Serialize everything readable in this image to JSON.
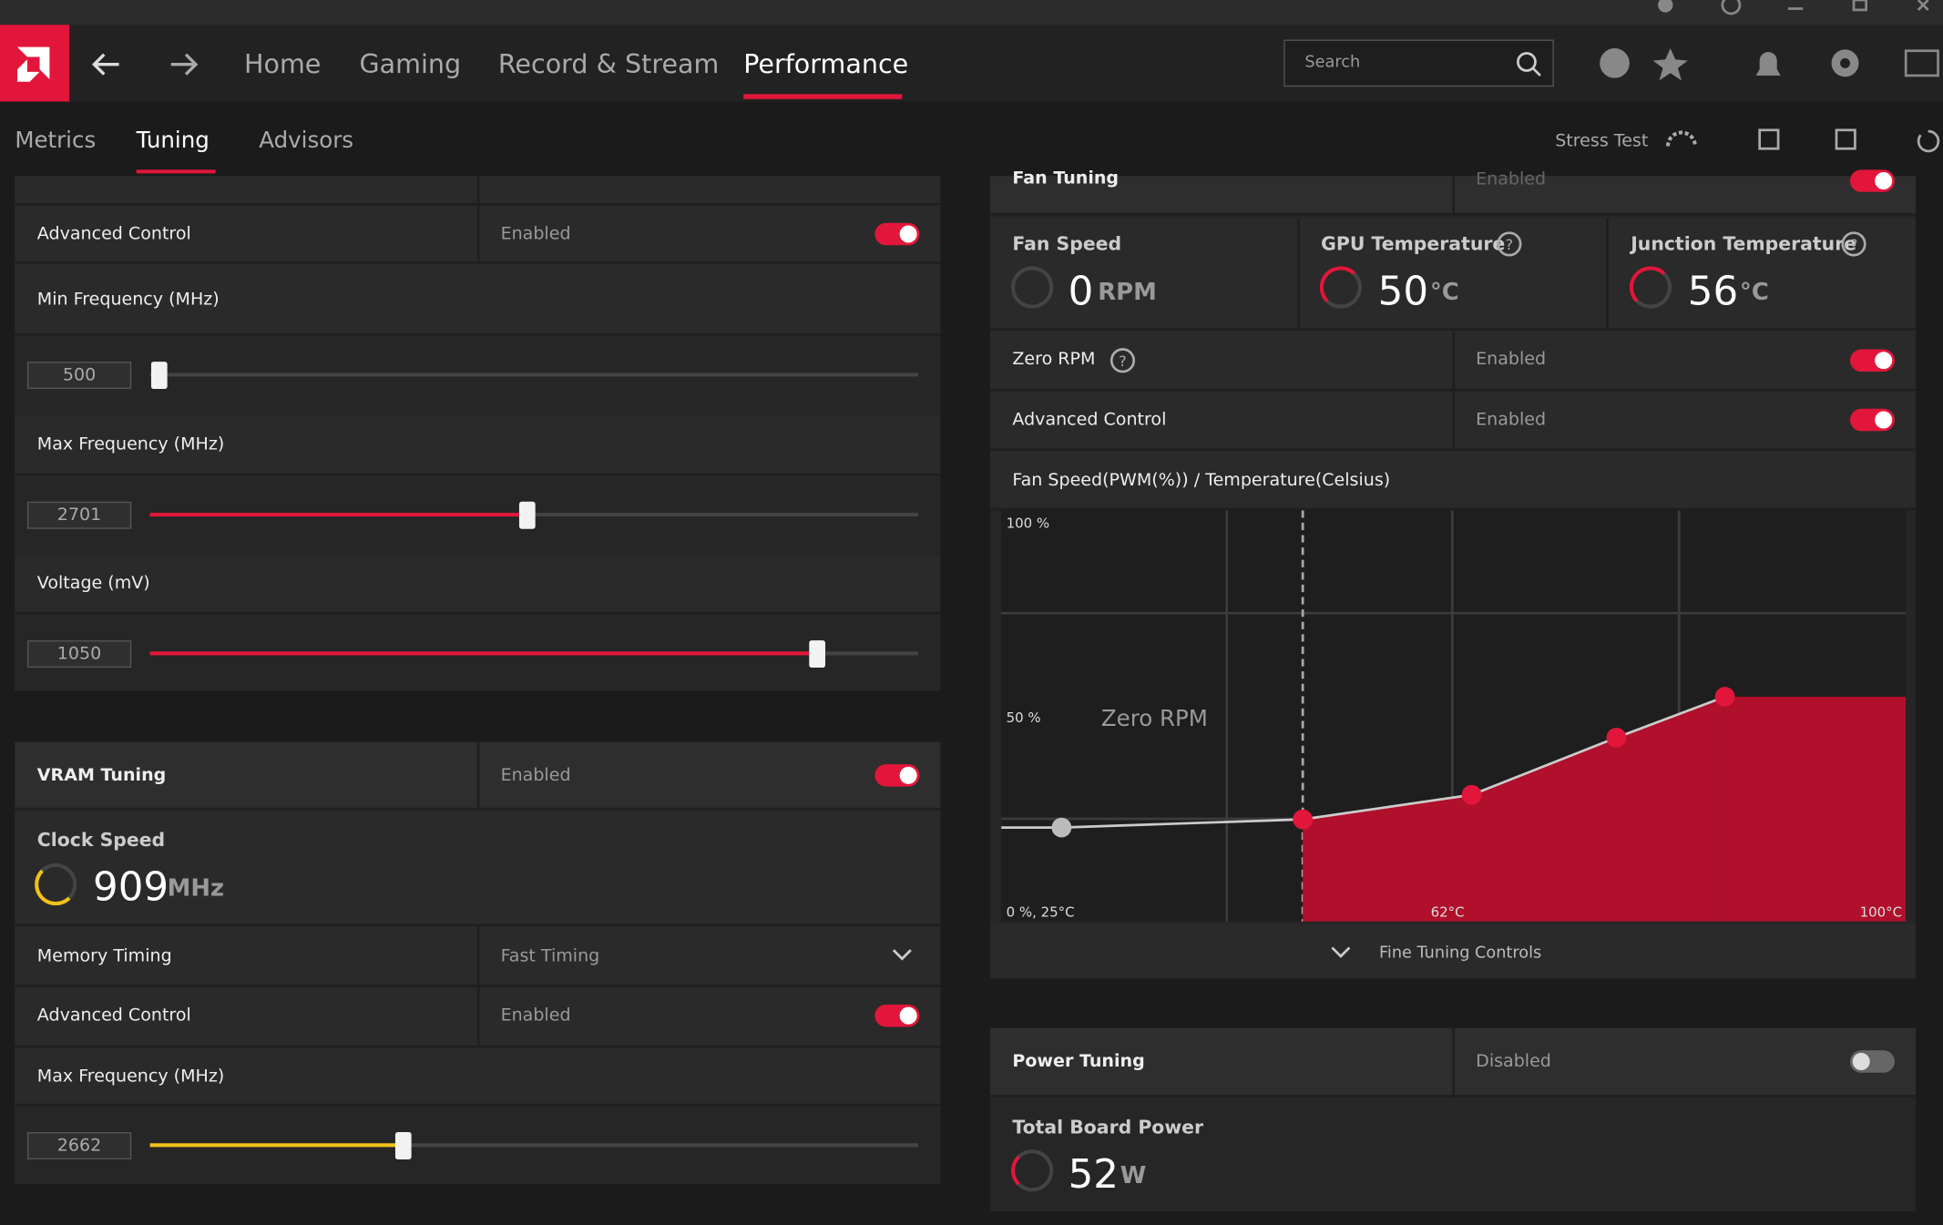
{
  "nav": {
    "tabs": [
      "Home",
      "Gaming",
      "Record & Stream",
      "Performance"
    ],
    "active": 3,
    "search_placeholder": "Search"
  },
  "subnav": {
    "tabs": [
      "Metrics",
      "Tuning",
      "Advisors"
    ],
    "active": 1,
    "stress_test": "Stress Test"
  },
  "gpu_tuning": {
    "advanced_control": {
      "label": "Advanced Control",
      "status": "Enabled",
      "on": true
    },
    "sliders": [
      {
        "label": "Min Frequency (MHz)",
        "value": 500
      },
      {
        "label": "Max Frequency (MHz)",
        "value": 2701
      },
      {
        "label": "Voltage (mV)",
        "value": 1050
      }
    ]
  },
  "vram_tuning": {
    "title": "VRAM Tuning",
    "status": "Enabled",
    "on": true,
    "clock_speed": {
      "label": "Clock Speed",
      "value": 909,
      "unit": "MHz"
    },
    "memory_timing": {
      "label": "Memory Timing",
      "value": "Fast Timing"
    },
    "advanced_control": {
      "label": "Advanced Control",
      "status": "Enabled",
      "on": true
    },
    "slider": {
      "label": "Max Frequency (MHz)",
      "value": 2662
    }
  },
  "fan_tuning": {
    "title": "Fan Tuning",
    "status": "Enabled",
    "on": true,
    "gauges": [
      {
        "label": "Fan Speed",
        "value": 0,
        "unit": "RPM"
      },
      {
        "label": "GPU Temperature",
        "value": 50,
        "unit": "°C"
      },
      {
        "label": "Junction Temperature",
        "value": 56,
        "unit": "°C"
      }
    ],
    "zero_rpm": {
      "label": "Zero RPM",
      "status": "Enabled",
      "on": true
    },
    "advanced_control": {
      "label": "Advanced Control",
      "status": "Enabled",
      "on": true
    },
    "chart_title": "Fan Speed(PWM(%)) / Temperature(Celsius)",
    "fine_tuning": "Fine Tuning Controls"
  },
  "chart_data": {
    "type": "line",
    "xlim": [
      25,
      100
    ],
    "ylim": [
      0,
      100
    ],
    "yticks": [
      {
        "value": 100,
        "label": "100 %"
      },
      {
        "value": 50,
        "label": "50 %"
      }
    ],
    "xticks": [
      {
        "value": 62,
        "label": "62°C"
      },
      {
        "value": 100,
        "label": "100°C"
      }
    ],
    "origin_label": "0 %, 25°C",
    "zero_rpm_label": "Zero RPM",
    "zero_rpm_threshold": 50,
    "x": [
      30,
      50,
      64,
      76,
      85
    ],
    "values": [
      23,
      25,
      31,
      45,
      55
    ]
  },
  "power_tuning": {
    "title": "Power Tuning",
    "status": "Disabled",
    "on": false,
    "total_board_power": {
      "label": "Total Board Power",
      "value": 52,
      "unit": "W"
    }
  }
}
